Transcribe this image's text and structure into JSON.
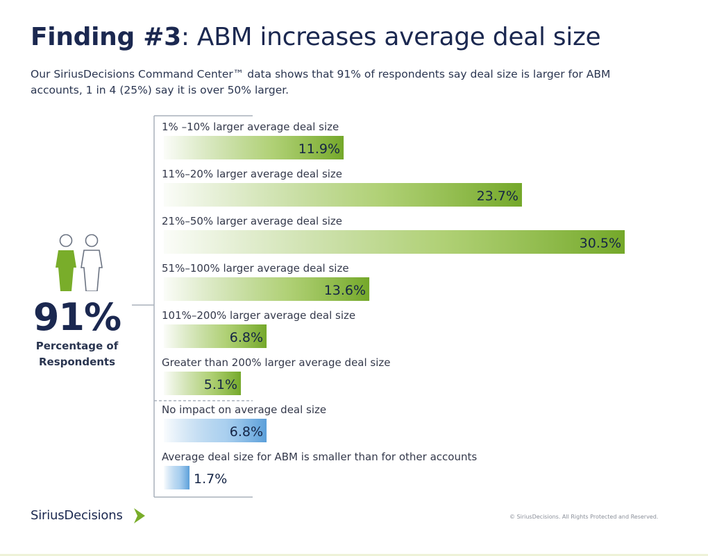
{
  "header": {
    "title_bold": "Finding #3",
    "title_rest": ": ABM increases average deal size",
    "subtitle": "Our SiriusDecisions Command Center™ data shows that 91% of respondents say deal size is larger for ABM accounts, 1 in 4 (25%) say it is over 50% larger."
  },
  "summary": {
    "percentage": "91%",
    "caption": "Percentage of Respondents",
    "icon": "people-icon"
  },
  "chart_data": {
    "type": "bar",
    "orientation": "horizontal",
    "unit": "%",
    "categories": [
      "1% –10% larger average deal size",
      "11%–20% larger average deal size",
      "21%–50% larger average deal size",
      "51%–100% larger average deal size",
      "101%–200% larger average deal size",
      "Greater than 200% larger average deal size",
      "No impact on average deal size",
      "Average deal size for ABM is smaller than for other accounts"
    ],
    "values": [
      11.9,
      23.7,
      30.5,
      13.6,
      6.8,
      5.1,
      6.8,
      1.7
    ],
    "value_labels": [
      "11.9%",
      "23.7%",
      "30.5%",
      "13.6%",
      "6.8%",
      "5.1%",
      "6.8%",
      "1.7%"
    ],
    "group": [
      "larger",
      "larger",
      "larger",
      "larger",
      "larger",
      "larger",
      "other",
      "other"
    ],
    "colors": {
      "larger": "#79ad2a",
      "other": "#5fa2da"
    },
    "xlim": [
      0,
      30.5
    ],
    "grid": false
  },
  "footer": {
    "brand": "SiriusDecisions",
    "copyright": "© SiriusDecisions. All Rights Protected and Reserved."
  }
}
